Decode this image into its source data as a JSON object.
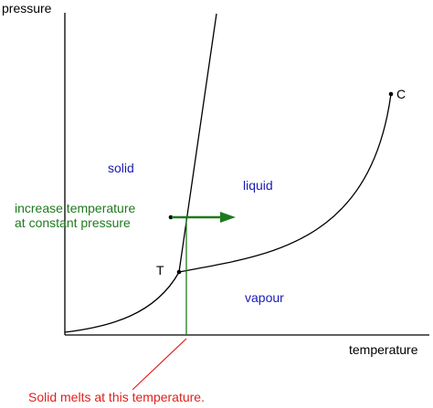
{
  "axes": {
    "y_label": "pressure",
    "x_label": "temperature"
  },
  "regions": {
    "solid": "solid",
    "liquid": "liquid",
    "vapour": "vapour"
  },
  "points": {
    "triple": "T",
    "critical": "C"
  },
  "annotations": {
    "process_line1": "increase temperature",
    "process_line2": "at constant pressure",
    "melt_note": "Solid melts at this temperature."
  },
  "colors": {
    "axis": "#000000",
    "curve": "#000000",
    "region_text": "#1a1ab4",
    "process": "#1f7a1f",
    "note": "#e0211d"
  }
}
